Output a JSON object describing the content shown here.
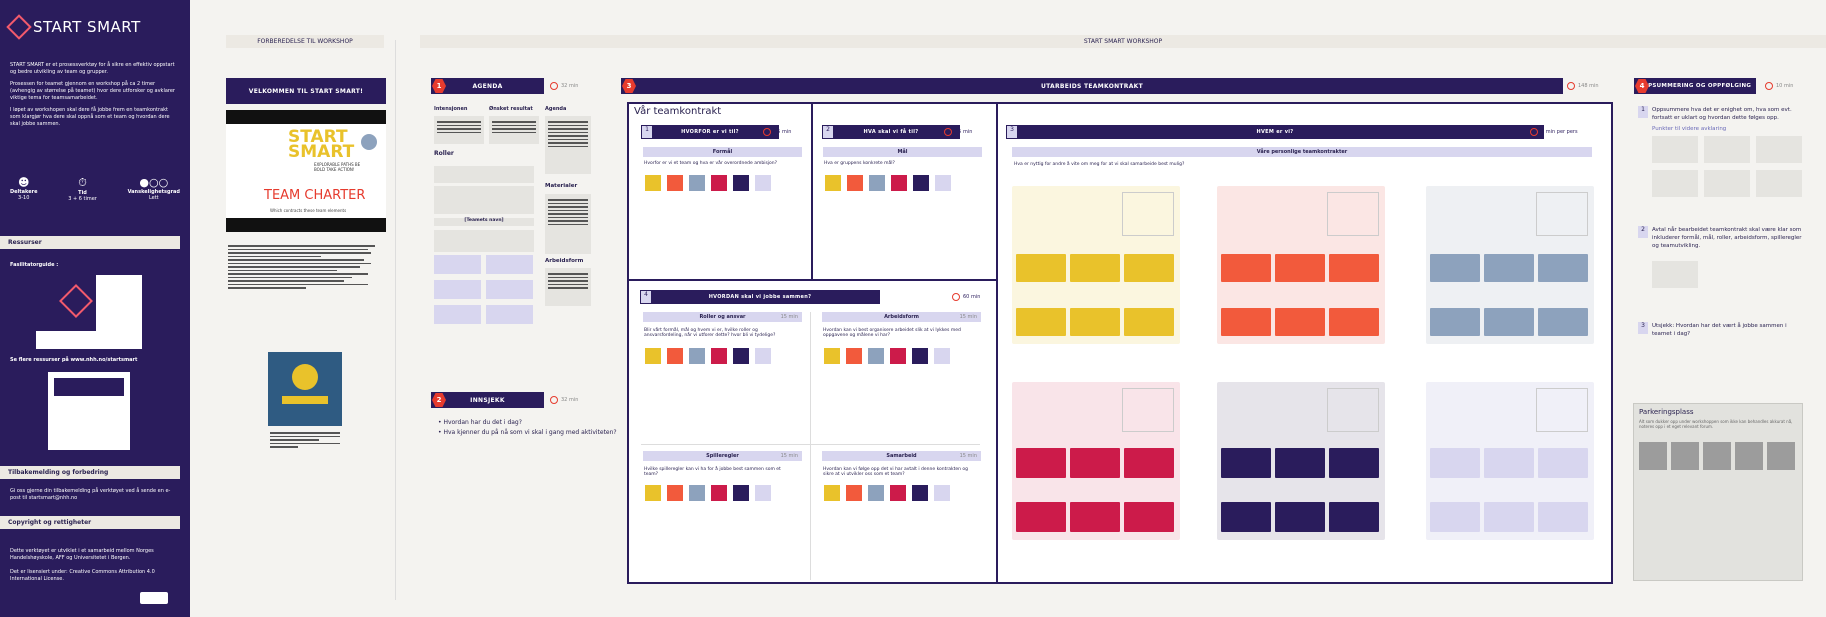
{
  "sidebar": {
    "logo": "START SMART",
    "bullets": [
      "START SMART er et prosessverktøy for å sikre en effektiv oppstart og bedre utvikling av team og grupper.",
      "Prosessen for teamet gjennom en workshop på ca 2 timer (avhengig av størrelse på teamet) hvor dere utforsker og avklarer viktige tema for teamsamarbeidet.",
      "I løpet av workshopen skal dere få jobbe frem en teamkontrakt som klargjør hva dere skal oppnå som et team og hvordan dere skal jobbe sammen."
    ],
    "stats": [
      {
        "icon": "people-icon",
        "label": "Deltakere",
        "value": "3-10"
      },
      {
        "icon": "stopwatch-icon",
        "label": "Tid",
        "value": "3 + 6 timer"
      },
      {
        "icon": "dots-icon",
        "label": "Vanskelighetsgrad",
        "value": "Lett"
      }
    ],
    "resources_title": "Ressurser",
    "facilitator_label": "Fasilitatorguide :",
    "more_resources": "Se flere ressurser på www.nhh.no/startsmart",
    "feedback_title": "Tilbakemelding og forbedring",
    "feedback_text": "Gi oss gjerne din tilbakemelding på verktøyet ved å sende en e-post til startsmart@nhh.no",
    "copyright_title": "Copyright og rettigheter",
    "copyright_text_1": "Dette verktøyet er utviklet i et samarbeid mellom Norges Handelshøyskole, AFF og Universitetet i Bergen.",
    "copyright_text_2": "Det er lisensiert under: Creative Commons Attribution 4.0 International License."
  },
  "prep": {
    "title": "FORBEREDELSE TIL WORKSHOP",
    "welcome": "VELKOMMEN TIL START SMART!",
    "poster_title_1": "START",
    "poster_title_2": "SMART",
    "poster_sub": "TEAM CHARTER",
    "poster_handwritten": "EXPLORABLE PATHS BE BOLD TAKE ACTION!",
    "poster_caption": "Which contracts these team elements"
  },
  "workshop": {
    "title": "START SMART WORKSHOP"
  },
  "agenda": {
    "num": "1",
    "title": "AGENDA",
    "time": "32 min",
    "col_labels": [
      "Intensjonen",
      "Ønsket resultat",
      "Agenda"
    ],
    "roller": "Roller",
    "materialer": "Materialer",
    "arbeidsform": "Arbeidsform",
    "teamets_navn": "[Teamets navn]"
  },
  "innsjekk": {
    "num": "2",
    "title": "INNSJEKK",
    "time": "32 min",
    "items": [
      "Hvordan har du det i dag?",
      "Hva kjenner du på nå som vi skal i gang med aktiviteten?"
    ]
  },
  "utarbeid": {
    "num": "3",
    "title": "UTARBEIDS TEAMKONTRAKT",
    "time": "148 min",
    "board_title": "Vår teamkontrakt",
    "q1": {
      "num": "1",
      "title": "HVORFOR er vi til?",
      "time": "15 min",
      "sub": "Formål",
      "desc": "Hvorfor er vi et team og hva er vår overordnede ambisjon?"
    },
    "q2": {
      "num": "2",
      "title": "HVA skal vi få til?",
      "time": "15 min",
      "sub": "Mål",
      "desc": "Hva er gruppens konkrete mål?"
    },
    "q3": {
      "num": "3",
      "title": "HVEM er vi?",
      "time": "5 min per pers",
      "sub": "Våre personlige teamkontrakter",
      "desc": "Hva er nyttig for andre å vite om meg for at vi skal samarbeide best mulig?"
    },
    "q4": {
      "num": "4",
      "title": "HVORDAN skal vi jobbe sammen?",
      "time": "60 min",
      "subs": [
        {
          "title": "Roller og ansvar",
          "time": "15 min",
          "desc": "Blir vårt formål, mål og hvem vi er, hvilke roller og ansvarsfordeling, når vi utforer dette? hvor bli vi tydelige?"
        },
        {
          "title": "Arbeidsform",
          "time": "15 min",
          "desc": "Hvordan kan vi best organisere arbeidet slik at vi lykkes med oppgavene og målene vi har?"
        },
        {
          "title": "Spilleregler",
          "time": "15 min",
          "desc": "Hvilke spilleregler kan vi ha for å jobbe best sammen som et team?"
        },
        {
          "title": "Samarbeid",
          "time": "15 min",
          "desc": "Hvordan kan vi følge opp det vi har avtalt i denne kontrakten og sikre at vi utvikler oss som et team?"
        }
      ]
    }
  },
  "summary": {
    "num": "4",
    "title": "OPPSUMMERING OG OPPFØLGING",
    "time": "10 min",
    "items": [
      {
        "num": "1",
        "text": "Oppsummere hva det er enighet om, hva som evt. fortsatt er uklart og hvordan dette følges opp.",
        "link": "Punkter til videre avklaring"
      },
      {
        "num": "2",
        "text": "Avtal når bearbeidet teamkontrakt skal være klar som inkluderer formål, mål, roller, arbeidsform, spilleregler og teamutvikling."
      },
      {
        "num": "3",
        "text": "Utsjekk: Hvordan har det vært å jobbe sammen i teamet i dag?"
      }
    ],
    "parking": "Parkeringsplass",
    "parking_desc": "Alt som dukker opp under workshoppen som ikke kan behandles akkurat nå, noteres opp i et eget relevant forum."
  },
  "palette": {
    "yellow": "#e9c22b",
    "orange": "#f25a3c",
    "blue": "#8da2bd",
    "crimson": "#cc1b4a",
    "navy": "#2a1c5c",
    "lavender": "#d8d6ef"
  }
}
